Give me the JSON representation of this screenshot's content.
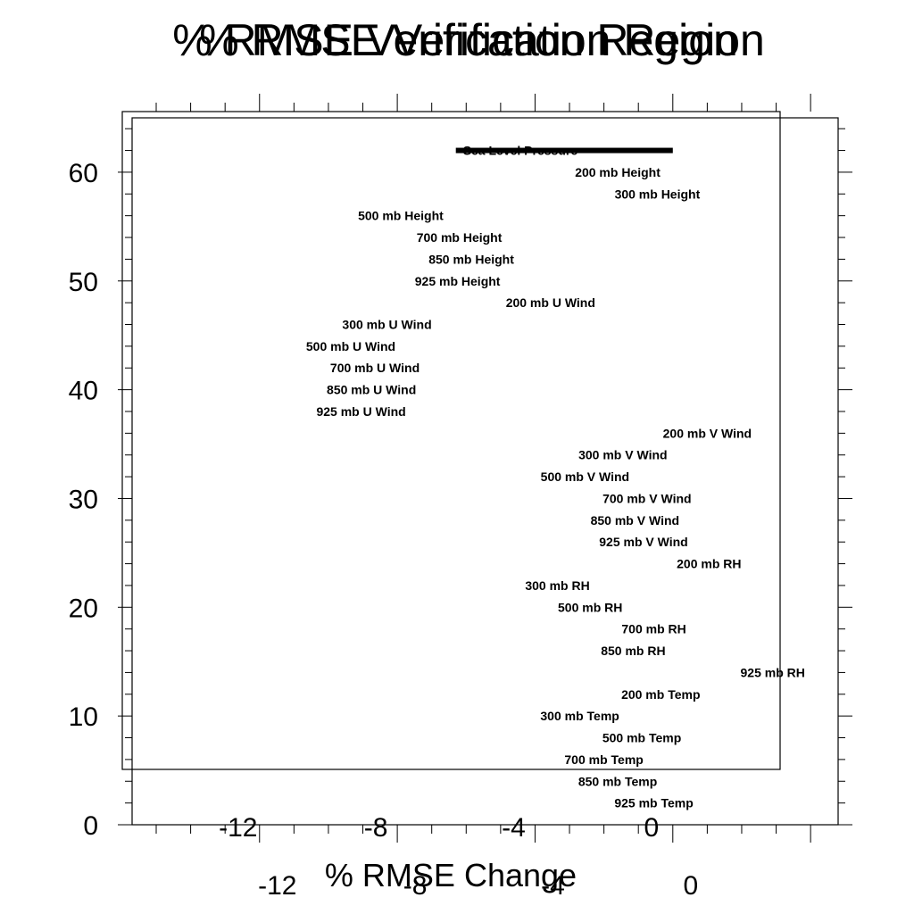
{
  "chart_data": {
    "type": "bar",
    "orientation": "horizontal",
    "title": "% RMSE Verification Region",
    "title_overlay": "% RMSE Verification Region",
    "xlabel": "% RMSE Change",
    "ylabel": "",
    "xlim": [
      -15.7,
      4.8
    ],
    "ylim": [
      0,
      65
    ],
    "grid": false,
    "legend": "none",
    "x_ticks": [
      -12,
      -8,
      -4,
      0
    ],
    "x_ticks_bottom": [
      -12,
      -8,
      -4,
      0
    ],
    "y_ticks": [
      0,
      10,
      20,
      30,
      40,
      50,
      60
    ],
    "bar_color": "#000000",
    "bars": [
      {
        "y": 62,
        "value": -6.3,
        "label": "Sea Level Pressure"
      }
    ],
    "labels": [
      {
        "y": 60,
        "x": -1.6,
        "label": "200 mb Height"
      },
      {
        "y": 58,
        "x": -0.45,
        "label": "300 mb Height"
      },
      {
        "y": 56,
        "x": -7.9,
        "label": "500 mb Height"
      },
      {
        "y": 54,
        "x": -6.2,
        "label": "700 mb Height"
      },
      {
        "y": 52,
        "x": -5.85,
        "label": "850 mb Height"
      },
      {
        "y": 50,
        "x": -6.25,
        "label": "925 mb Height"
      },
      {
        "y": 48,
        "x": -3.55,
        "label": "200 mb U Wind"
      },
      {
        "y": 46,
        "x": -8.3,
        "label": "300 mb U Wind"
      },
      {
        "y": 44,
        "x": -9.35,
        "label": "500 mb U Wind"
      },
      {
        "y": 42,
        "x": -8.65,
        "label": "700 mb U Wind"
      },
      {
        "y": 40,
        "x": -8.75,
        "label": "850 mb U Wind"
      },
      {
        "y": 38,
        "x": -9.05,
        "label": "925 mb U Wind"
      },
      {
        "y": 36,
        "x": 1.0,
        "label": "200 mb V Wind"
      },
      {
        "y": 34,
        "x": -1.45,
        "label": "300 mb V Wind"
      },
      {
        "y": 32,
        "x": -2.55,
        "label": "500 mb V Wind"
      },
      {
        "y": 30,
        "x": -0.75,
        "label": "700 mb V Wind"
      },
      {
        "y": 28,
        "x": -1.1,
        "label": "850 mb V Wind"
      },
      {
        "y": 26,
        "x": -0.85,
        "label": "925 mb V Wind"
      },
      {
        "y": 24,
        "x": 1.05,
        "label": "200 mb RH"
      },
      {
        "y": 22,
        "x": -3.35,
        "label": "300 mb RH"
      },
      {
        "y": 20,
        "x": -2.4,
        "label": "500 mb RH"
      },
      {
        "y": 18,
        "x": -0.55,
        "label": "700 mb RH"
      },
      {
        "y": 16,
        "x": -1.15,
        "label": "850 mb RH"
      },
      {
        "y": 14,
        "x": 2.9,
        "label": "925 mb RH"
      },
      {
        "y": 12,
        "x": -0.35,
        "label": "200 mb Temp"
      },
      {
        "y": 10,
        "x": -2.7,
        "label": "300 mb Temp"
      },
      {
        "y": 8,
        "x": -0.9,
        "label": "500 mb Temp"
      },
      {
        "y": 6,
        "x": -2.0,
        "label": "700 mb Temp"
      },
      {
        "y": 4,
        "x": -1.6,
        "label": "850 mb Temp"
      },
      {
        "y": 2,
        "x": -0.55,
        "label": "925 mb Temp"
      }
    ]
  }
}
